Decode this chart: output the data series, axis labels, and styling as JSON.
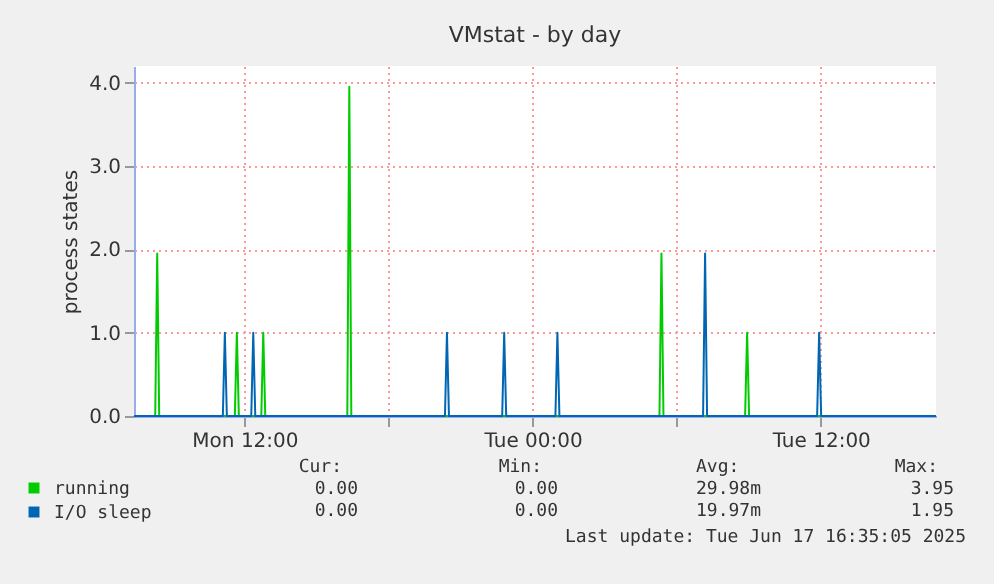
{
  "chart_data": {
    "type": "line",
    "title": "VMstat - by day",
    "ylabel": "process states",
    "xlim": [
      "2025-06-16T07:24",
      "2025-06-17T16:48"
    ],
    "xticks": [
      {
        "value": "2025-06-16T12:00",
        "label": "Mon 12:00"
      },
      {
        "value": "2025-06-16T18:00",
        "label": null
      },
      {
        "value": "2025-06-17T00:00",
        "label": "Tue 00:00"
      },
      {
        "value": "2025-06-17T06:00",
        "label": null
      },
      {
        "value": "2025-06-17T12:00",
        "label": "Tue 12:00"
      }
    ],
    "ylim": [
      0,
      4.2
    ],
    "yticks": [
      {
        "value": 0,
        "label": "0.0"
      },
      {
        "value": 1,
        "label": "1.0"
      },
      {
        "value": 2,
        "label": "2.0"
      },
      {
        "value": 3,
        "label": "3.0"
      },
      {
        "value": 4,
        "label": "4.0"
      }
    ],
    "grid": true,
    "legend": "bottom",
    "marker": "none",
    "line_style": "solid",
    "series": [
      {
        "name": "running",
        "color": "#00cc00",
        "x": [
          "2025-06-16T07:24",
          "2025-06-16T08:17",
          "2025-06-16T08:22",
          "2025-06-16T08:27",
          "2025-06-16T11:36",
          "2025-06-16T11:41",
          "2025-06-16T11:46",
          "2025-06-16T12:42",
          "2025-06-16T12:47",
          "2025-06-16T12:52",
          "2025-06-16T16:17",
          "2025-06-16T16:22",
          "2025-06-16T16:27",
          "2025-06-17T05:17",
          "2025-06-17T05:22",
          "2025-06-17T05:27",
          "2025-06-17T08:51",
          "2025-06-17T08:56",
          "2025-06-17T09:01",
          "2025-06-17T16:48"
        ],
        "values": [
          0,
          0,
          1.95,
          0,
          0,
          1.0,
          0,
          0,
          1.0,
          0,
          0,
          3.95,
          0,
          0,
          1.95,
          0,
          0,
          1.0,
          0,
          0
        ]
      },
      {
        "name": "I/O sleep",
        "color": "#0066b3",
        "x": [
          "2025-06-16T07:24",
          "2025-06-16T11:06",
          "2025-06-16T11:11",
          "2025-06-16T11:16",
          "2025-06-16T12:17",
          "2025-06-16T12:22",
          "2025-06-16T12:27",
          "2025-06-16T20:21",
          "2025-06-16T20:26",
          "2025-06-16T20:31",
          "2025-06-16T22:44",
          "2025-06-16T22:49",
          "2025-06-16T22:54",
          "2025-06-17T00:57",
          "2025-06-17T01:02",
          "2025-06-17T01:07",
          "2025-06-17T07:06",
          "2025-06-17T07:11",
          "2025-06-17T07:16",
          "2025-06-17T11:51",
          "2025-06-17T11:56",
          "2025-06-17T12:01",
          "2025-06-17T16:48"
        ],
        "values": [
          0,
          0,
          1.0,
          0,
          0,
          1.0,
          0,
          0,
          1.0,
          0,
          0,
          1.0,
          0,
          0,
          1.0,
          0,
          0,
          1.95,
          0,
          0,
          1.0,
          0,
          0
        ]
      }
    ],
    "annotations": [
      "Cur:",
      "Min:",
      "Avg:",
      "Max:",
      "0.00",
      "0.00",
      "29.98m",
      "3.95",
      "0.00",
      "0.00",
      "19.97m",
      "1.95",
      "Last update: Tue Jun 17 16:35:05 2025"
    ]
  }
}
